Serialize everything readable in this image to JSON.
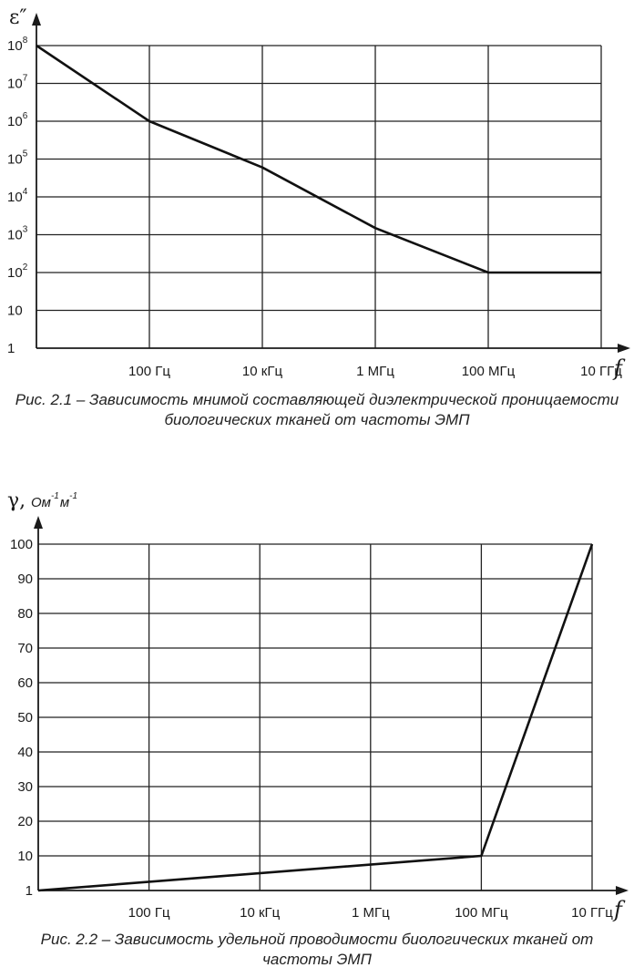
{
  "chart_data": [
    {
      "type": "line",
      "ylabel": "ε″",
      "xlabel": "f",
      "yscale": "log",
      "xscale": "log",
      "y_ticks": [
        {
          "base": "1",
          "exp": ""
        },
        {
          "base": "10",
          "exp": ""
        },
        {
          "base": "10",
          "exp": "2"
        },
        {
          "base": "10",
          "exp": "3"
        },
        {
          "base": "10",
          "exp": "4"
        },
        {
          "base": "10",
          "exp": "5"
        },
        {
          "base": "10",
          "exp": "6"
        },
        {
          "base": "10",
          "exp": "7"
        },
        {
          "base": "10",
          "exp": "8"
        }
      ],
      "ylim": [
        1,
        100000000
      ],
      "x_ticks": [
        "100 Гц",
        "10 кГц",
        "1 МГц",
        "100 МГц",
        "10 ГГц"
      ],
      "x_tick_values": [
        100,
        10000,
        1000000,
        100000000,
        10000000000
      ],
      "xlim": [
        1,
        10000000000
      ],
      "grid": true,
      "series": [
        {
          "x": [
            1,
            100,
            10000,
            1000000,
            100000000,
            10000000000
          ],
          "y": [
            100000000,
            1000000,
            60000,
            1500,
            100,
            100
          ]
        }
      ],
      "caption": "Рис. 2.1 – Зависимость мнимой составляющей диэлектрической проницаемости  биологических тканей от частоты ЭМП"
    },
    {
      "type": "line",
      "ylabel": "γ,",
      "yunit": {
        "base1": "Ом",
        "exp1": "-1",
        "base2": "м",
        "exp2": "-1"
      },
      "xlabel": "f",
      "xscale": "log",
      "y_ticks": [
        "1",
        "10",
        "20",
        "30",
        "40",
        "50",
        "60",
        "70",
        "80",
        "90",
        "100"
      ],
      "x_ticks": [
        "100 Гц",
        "10 кГц",
        "1 МГц",
        "100 МГц",
        "10 ГГц"
      ],
      "x_tick_values": [
        100,
        10000,
        1000000,
        100000000,
        10000000000
      ],
      "xlim": [
        1,
        10000000000
      ],
      "grid": true,
      "series": [
        {
          "x": [
            1,
            100000000,
            10000000000
          ],
          "y": [
            1,
            10,
            100
          ]
        }
      ],
      "caption": "Рис. 2.2 – Зависимость удельной проводимости биологических тканей от частоты ЭМП"
    }
  ]
}
